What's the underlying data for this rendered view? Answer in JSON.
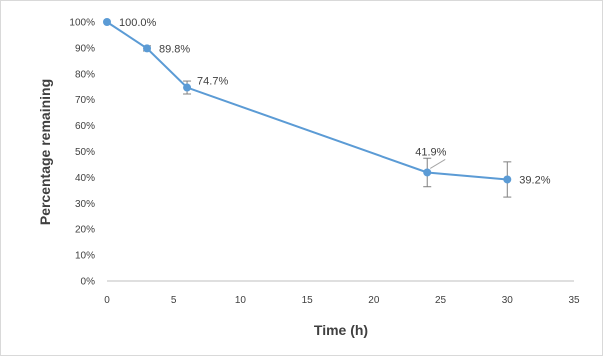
{
  "chart_data": {
    "type": "line",
    "title": "",
    "xlabel": "Time (h)",
    "ylabel": "Percentage remaining",
    "xlim": [
      0,
      35
    ],
    "ylim": [
      0,
      100
    ],
    "x_ticks": [
      "0",
      "5",
      "10",
      "15",
      "20",
      "25",
      "30",
      "35"
    ],
    "y_ticks": [
      "0%",
      "10%",
      "20%",
      "30%",
      "40%",
      "50%",
      "60%",
      "70%",
      "80%",
      "90%",
      "100%"
    ],
    "grid": false,
    "legend": "none",
    "color": "#5b9bd5",
    "series": [
      {
        "x": [
          0,
          3,
          6,
          24,
          30
        ],
        "y": [
          100.0,
          89.8,
          74.7,
          41.9,
          39.2
        ],
        "error": [
          0,
          1.0,
          2.5,
          5.5,
          6.8
        ],
        "labels": [
          "100.0%",
          "89.8%",
          "74.7%",
          "41.9%",
          "39.2%"
        ]
      }
    ]
  }
}
